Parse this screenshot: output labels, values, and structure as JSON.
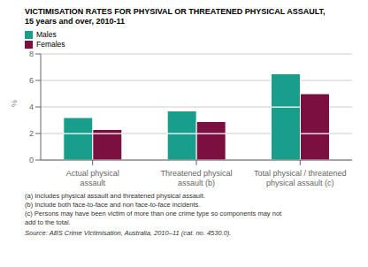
{
  "chart_data": {
    "type": "bar",
    "stacked": true,
    "title": "VICTIMISATION RATES FOR PHYSIVAL OR THREATENED PHYSICAL ASSAULT,",
    "subtitle": "15 years and over, 2010-11",
    "ylabel": "%",
    "categories": [
      "Actual physical\nassault",
      "Threatened physical\nassault (b)",
      "Total physical / threatened\nphysical assault (c)"
    ],
    "series": [
      {
        "name": "Males",
        "color": "#1a9e8c",
        "segments": [
          [
            2.0,
            2.0,
            4.0
          ],
          [
            1.2,
            1.7,
            2.5
          ]
        ]
      },
      {
        "name": "Females",
        "color": "#7b1040",
        "segments": [
          [
            2.0,
            2.0,
            2.0
          ],
          [
            0.3,
            0.9,
            3.0
          ]
        ]
      }
    ],
    "ylim": [
      0,
      8
    ],
    "yticks": [
      0,
      2,
      4,
      6,
      8
    ],
    "grid": true,
    "annotations": [
      "(a) Includes physical assault and threatened physical assault.",
      "(b) Include both face-to-face and non face-to-face incidents.",
      "(c) Persons may have been victim of more than one crime type so components may not",
      "add to the total.",
      "Source: ABS Crime Victimisation, Australia, 2010–11 (cat. no. 4530.0)."
    ]
  }
}
